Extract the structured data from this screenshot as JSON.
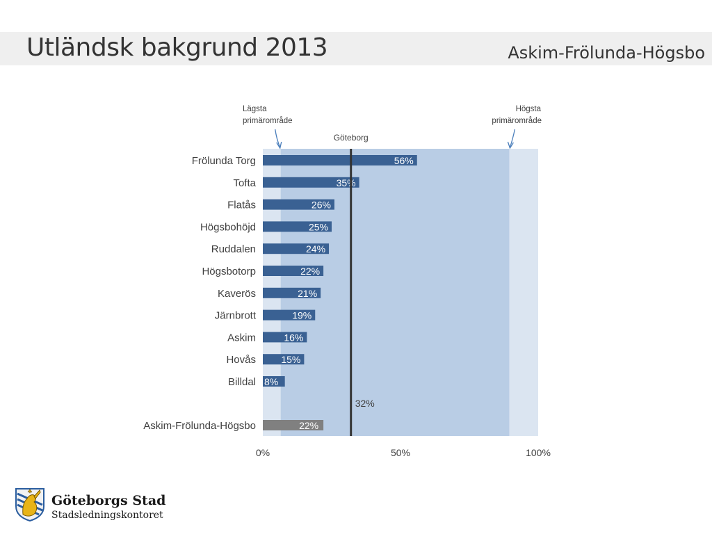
{
  "header": {
    "title": "Utländsk bakgrund 2013",
    "subtitle": "Askim-Frölunda-Högsbo"
  },
  "chart_data": {
    "type": "bar",
    "orientation": "horizontal",
    "categories": [
      "Frölunda Torg",
      "Tofta",
      "Flatås",
      "Högsbohöjd",
      "Ruddalen",
      "Högsbotorp",
      "Kaverös",
      "Järnbrott",
      "Askim",
      "Hovås",
      "Billdal"
    ],
    "values": [
      56,
      35,
      26,
      25,
      24,
      22,
      21,
      19,
      16,
      15,
      8
    ],
    "value_labels": [
      "56%",
      "35%",
      "26%",
      "25%",
      "24%",
      "22%",
      "21%",
      "19%",
      "16%",
      "15%",
      "8%"
    ],
    "total": {
      "category": "Askim-Frölunda-Högsbo",
      "value": 22,
      "label": "22%"
    },
    "reference_line": {
      "name": "Göteborg",
      "value": 32,
      "label": "32%"
    },
    "range_band": {
      "low": 6.5,
      "high": 89.5
    },
    "annotations": {
      "lowest": [
        "Lägsta",
        "primärområde"
      ],
      "highest": [
        "Högsta",
        "primärområde"
      ]
    },
    "x_ticks": [
      {
        "value": 0,
        "label": "0%"
      },
      {
        "value": 50,
        "label": "50%"
      },
      {
        "value": 100,
        "label": "100%"
      }
    ],
    "xlim": [
      0,
      100
    ],
    "colors": {
      "bar": "#3a6193",
      "total_bar": "#808080",
      "band_outer": "#dbe5f1",
      "band_inner": "#b9cde5",
      "reference_line": "#333333",
      "annotation": "#4a7ebb"
    }
  },
  "footer": {
    "org_name": "Göteborgs Stad",
    "org_sub": "Stadsledningskontoret",
    "logo_icon": "goteborg-lion-shield-icon"
  }
}
